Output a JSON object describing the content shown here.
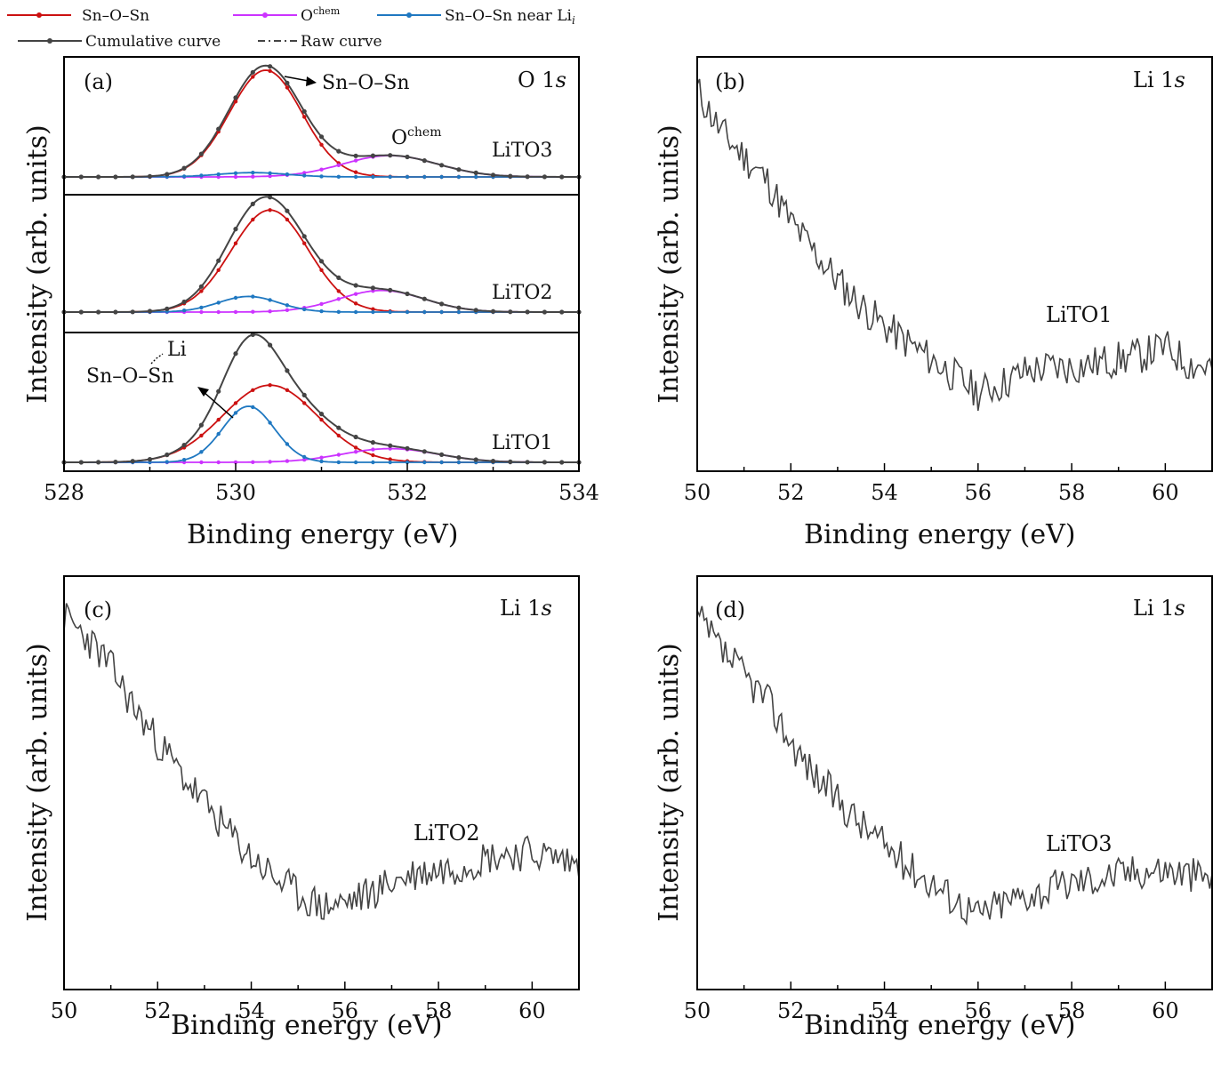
{
  "legend": {
    "entries": [
      {
        "name": "Sn–O–Sn",
        "color": "#cc1111",
        "style": "solid-marker"
      },
      {
        "name": "O",
        "sup": "chem",
        "color": "#cc33ff",
        "style": "solid-marker"
      },
      {
        "name": "Sn–O–Sn near Li",
        "sub": "i",
        "color": "#1f78c1",
        "style": "solid-marker"
      },
      {
        "name": "Cumulative curve",
        "color": "#444444",
        "style": "solid-marker"
      },
      {
        "name": "Raw curve",
        "color": "#333333",
        "style": "dashdot"
      }
    ]
  },
  "colors": {
    "sno": "#cc1111",
    "ochem": "#cc33ff",
    "near_li": "#1f78c1",
    "cumulative": "#444444",
    "raw": "#444444",
    "spectrum": "#444444"
  },
  "chart_data": [
    {
      "id": "a",
      "type": "line",
      "panel_label": "(a)",
      "corner_label": "O 1s",
      "xlabel": "Binding energy (eV)",
      "ylabel": "Intensity (arb. units)",
      "xlim": [
        528,
        534
      ],
      "xticks": [
        528,
        530,
        532,
        534
      ],
      "subpanels": [
        {
          "sample": "LiTO3",
          "components": [
            {
              "name": "Sn–O–Sn",
              "center": 530.35,
              "amplitude": 1.0,
              "sigma": 0.42
            },
            {
              "name": "Ochem",
              "center": 531.8,
              "amplitude": 0.2,
              "sigma": 0.55
            },
            {
              "name": "Sn–O–Sn near Li",
              "center": 530.2,
              "amplitude": 0.04,
              "sigma": 0.4
            }
          ],
          "annotations": [
            {
              "text": "Sn–O–Sn"
            },
            {
              "text": "O",
              "sup": "chem"
            }
          ]
        },
        {
          "sample": "LiTO2",
          "components": [
            {
              "name": "Sn–O–Sn",
              "center": 530.4,
              "amplitude": 0.85,
              "sigma": 0.45
            },
            {
              "name": "Ochem",
              "center": 531.7,
              "amplitude": 0.18,
              "sigma": 0.5
            },
            {
              "name": "Sn–O–Sn near Li",
              "center": 530.15,
              "amplitude": 0.13,
              "sigma": 0.35
            }
          ],
          "annotations": []
        },
        {
          "sample": "LiTO1",
          "components": [
            {
              "name": "Sn–O–Sn",
              "center": 530.4,
              "amplitude": 0.62,
              "sigma": 0.55
            },
            {
              "name": "Ochem",
              "center": 531.8,
              "amplitude": 0.11,
              "sigma": 0.55
            },
            {
              "name": "Sn–O–Sn near Li",
              "center": 530.15,
              "amplitude": 0.45,
              "sigma": 0.3
            }
          ],
          "annotations": [
            {
              "text": "Sn–O–Sn"
            },
            {
              "text": "Li"
            }
          ]
        }
      ]
    },
    {
      "id": "b",
      "type": "line",
      "panel_label": "(b)",
      "corner_label": "Li 1s",
      "sample": "LiTO1",
      "xlabel": "Binding energy (eV)",
      "ylabel": "Intensity (arb. units)",
      "xlim": [
        50,
        61
      ],
      "ylim": [
        0,
        1
      ],
      "xticks": [
        50,
        52,
        54,
        56,
        58,
        60
      ],
      "x": [
        50,
        50.5,
        51,
        51.5,
        52,
        52.5,
        53,
        53.5,
        54,
        54.5,
        55,
        55.5,
        56,
        56.5,
        57,
        57.5,
        58,
        58.5,
        59,
        59.5,
        60,
        60.5,
        61
      ],
      "y": [
        0.92,
        0.82,
        0.76,
        0.7,
        0.6,
        0.53,
        0.46,
        0.4,
        0.35,
        0.31,
        0.27,
        0.23,
        0.19,
        0.21,
        0.24,
        0.25,
        0.25,
        0.26,
        0.27,
        0.28,
        0.3,
        0.26,
        0.25
      ]
    },
    {
      "id": "c",
      "type": "line",
      "panel_label": "(c)",
      "corner_label": "Li 1s",
      "sample": "LiTO2",
      "xlabel": "Binding energy (eV)",
      "ylabel": "Intensity (arb. units)",
      "xlim": [
        50,
        61
      ],
      "ylim": [
        0,
        1
      ],
      "xticks": [
        50,
        52,
        54,
        56,
        58,
        60
      ],
      "x": [
        50,
        50.5,
        51,
        51.5,
        52,
        52.5,
        53,
        53.5,
        54,
        54.5,
        55,
        55.5,
        56,
        56.5,
        57,
        57.5,
        58,
        58.5,
        59,
        59.5,
        60,
        60.5,
        61
      ],
      "y": [
        0.9,
        0.85,
        0.78,
        0.68,
        0.6,
        0.52,
        0.45,
        0.38,
        0.32,
        0.27,
        0.23,
        0.2,
        0.21,
        0.23,
        0.26,
        0.28,
        0.29,
        0.3,
        0.32,
        0.33,
        0.33,
        0.32,
        0.3
      ]
    },
    {
      "id": "d",
      "type": "line",
      "panel_label": "(d)",
      "corner_label": "Li 1s",
      "sample": "LiTO3",
      "xlabel": "Binding energy (eV)",
      "ylabel": "Intensity (arb. units)",
      "xlim": [
        50,
        61
      ],
      "ylim": [
        0,
        1
      ],
      "xticks": [
        50,
        52,
        54,
        56,
        58,
        60
      ],
      "x": [
        50,
        50.5,
        51,
        51.5,
        52,
        52.5,
        53,
        53.5,
        54,
        54.5,
        55,
        55.5,
        56,
        56.5,
        57,
        57.5,
        58,
        58.5,
        59,
        59.5,
        60,
        60.5,
        61
      ],
      "y": [
        0.9,
        0.82,
        0.76,
        0.7,
        0.6,
        0.52,
        0.46,
        0.4,
        0.35,
        0.3,
        0.26,
        0.22,
        0.18,
        0.21,
        0.23,
        0.24,
        0.26,
        0.27,
        0.28,
        0.29,
        0.29,
        0.28,
        0.27
      ]
    }
  ]
}
